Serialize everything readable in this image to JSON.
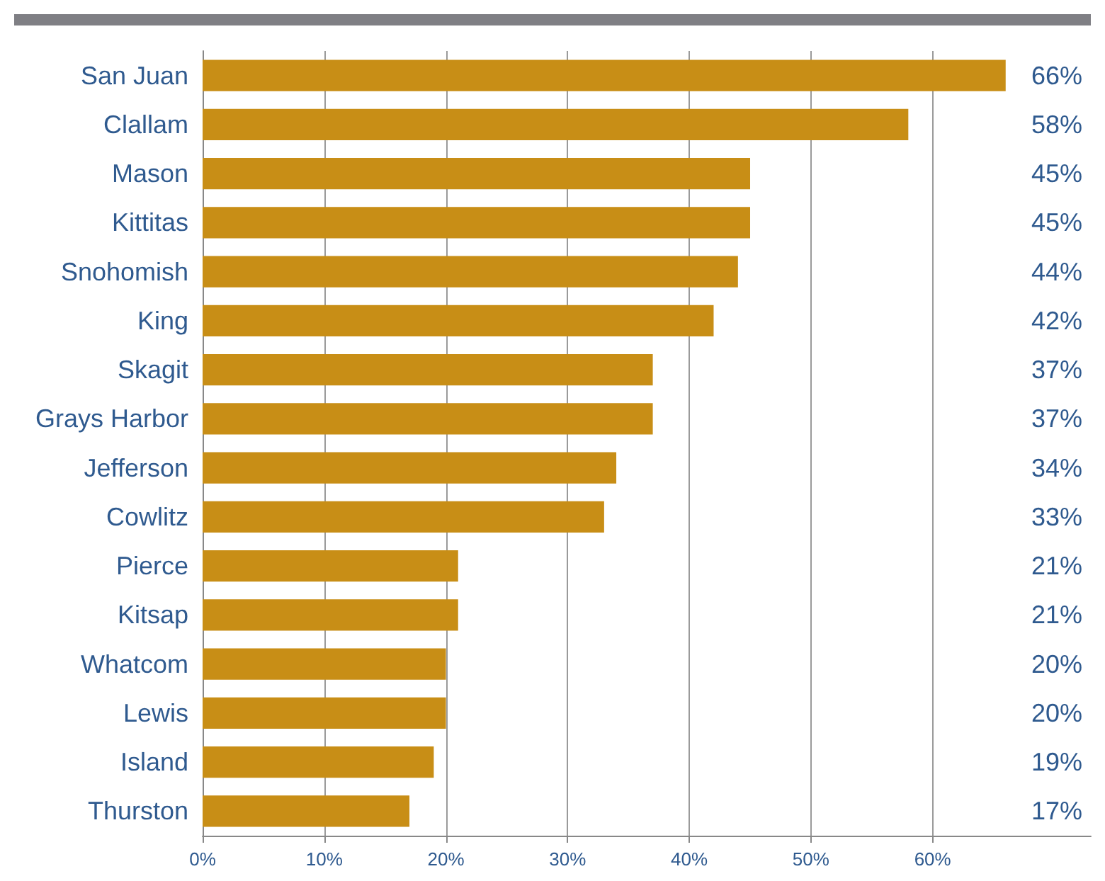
{
  "chart_data": {
    "type": "bar",
    "orientation": "horizontal",
    "categories": [
      "San Juan",
      "Clallam",
      "Mason",
      "Kittitas",
      "Snohomish",
      "King",
      "Skagit",
      "Grays Harbor",
      "Jefferson",
      "Cowlitz",
      "Pierce",
      "Kitsap",
      "Whatcom",
      "Lewis",
      "Island",
      "Thurston"
    ],
    "values": [
      66,
      58,
      45,
      45,
      44,
      42,
      37,
      37,
      34,
      33,
      21,
      21,
      20,
      20,
      19,
      17
    ],
    "value_labels": [
      "66%",
      "58%",
      "45%",
      "45%",
      "44%",
      "42%",
      "37%",
      "37%",
      "34%",
      "33%",
      "21%",
      "21%",
      "20%",
      "20%",
      "19%",
      "17%"
    ],
    "color": "#c88e16",
    "xlim": [
      0,
      73
    ],
    "xticks": [
      {
        "value": 0,
        "label": "0%"
      },
      {
        "value": 10,
        "label": "10%"
      },
      {
        "value": 20,
        "label": "20%"
      },
      {
        "value": 30,
        "label": "30%"
      },
      {
        "value": 40,
        "label": "40%"
      },
      {
        "value": 50,
        "label": "50%"
      },
      {
        "value": 60,
        "label": "60%"
      }
    ],
    "grid": "x"
  }
}
